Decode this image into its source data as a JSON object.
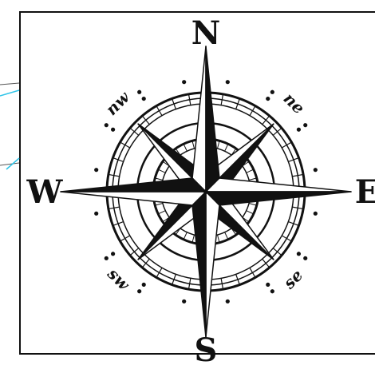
{
  "compass": {
    "north": "N",
    "south": "S",
    "east": "E",
    "west": "W",
    "northeast": "ne",
    "northwest": "nw",
    "southeast": "se",
    "southwest": "sw"
  },
  "colors": {
    "ink": "#111111",
    "paper": "#ffffff",
    "guide": "#2ec4e8"
  }
}
